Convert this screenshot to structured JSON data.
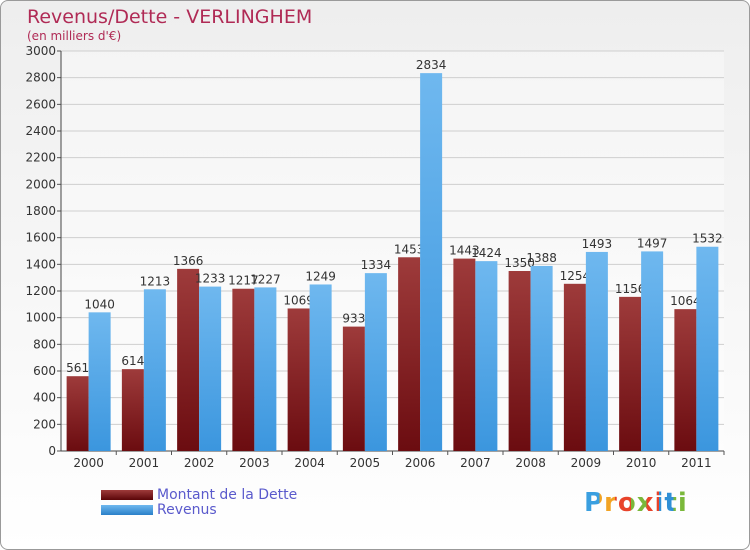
{
  "title": "Revenus/Dette - VERLINGHEM",
  "subtitle": "(en milliers d'€)",
  "logo_text": "Proxiti",
  "colors": {
    "debt": "#6b0c10",
    "debt_light": "#9e3b3b",
    "revenue": "#3b96de",
    "revenue_light": "#6fb8ef"
  },
  "chart_data": {
    "type": "bar",
    "title": "Revenus/Dette - VERLINGHEM",
    "subtitle": "(en milliers d'€)",
    "xlabel": "",
    "ylabel": "",
    "ylim": [
      0,
      3000
    ],
    "yticks": [
      0,
      200,
      400,
      600,
      800,
      1000,
      1200,
      1400,
      1600,
      1800,
      2000,
      2200,
      2400,
      2600,
      2800,
      3000
    ],
    "grid": true,
    "legend_position": "bottom-left",
    "categories": [
      "2000",
      "2001",
      "2002",
      "2003",
      "2004",
      "2005",
      "2006",
      "2007",
      "2008",
      "2009",
      "2010",
      "2011"
    ],
    "series": [
      {
        "name": "Montant de la Dette",
        "values": [
          561,
          614,
          1366,
          1217,
          1069,
          933,
          1453,
          1443,
          1350,
          1254,
          1156,
          1064
        ]
      },
      {
        "name": "Revenus",
        "values": [
          1040,
          1213,
          1233,
          1227,
          1249,
          1334,
          2834,
          1424,
          1388,
          1493,
          1497,
          1532
        ]
      }
    ]
  }
}
